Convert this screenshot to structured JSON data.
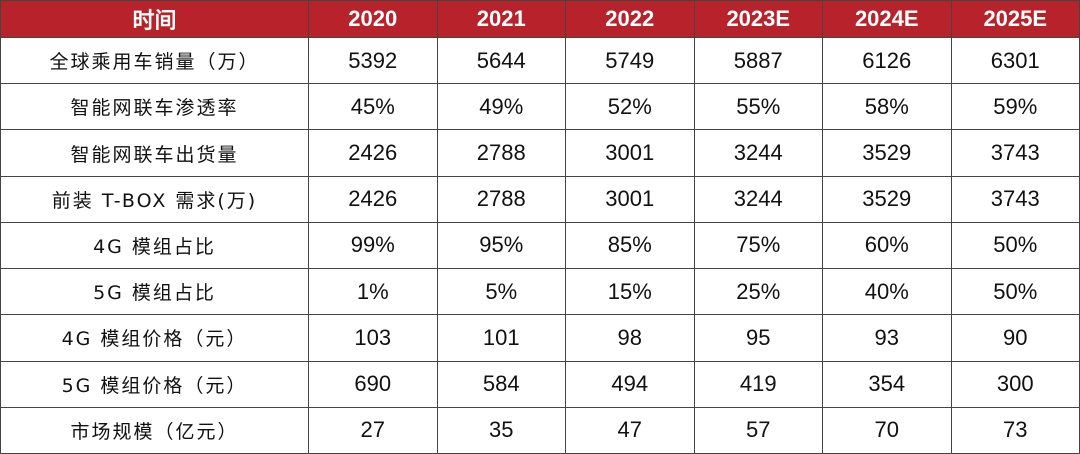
{
  "table": {
    "header": [
      "时间",
      "2020",
      "2021",
      "2022",
      "2023E",
      "2024E",
      "2025E"
    ],
    "rows": [
      [
        "全球乘用车销量（万）",
        5392,
        5644,
        5749,
        5887,
        6126,
        6301
      ],
      [
        "智能网联车渗透率",
        "45%",
        "49%",
        "52%",
        "55%",
        "58%",
        "59%"
      ],
      [
        "智能网联车出货量",
        2426,
        2788,
        3001,
        3244,
        3529,
        3743
      ],
      [
        "前装 T-BOX 需求(万)",
        2426,
        2788,
        3001,
        3244,
        3529,
        3743
      ],
      [
        "4G 模组占比",
        "99%",
        "95%",
        "85%",
        "75%",
        "60%",
        "50%"
      ],
      [
        "5G 模组占比",
        "1%",
        "5%",
        "15%",
        "25%",
        "40%",
        "50%"
      ],
      [
        "4G 模组价格（元）",
        103,
        101,
        98,
        95,
        93,
        90
      ],
      [
        "5G 模组价格（元）",
        690,
        584,
        494,
        419,
        354,
        300
      ],
      [
        "市场规模（亿元）",
        27,
        35,
        47,
        57,
        70,
        73
      ]
    ]
  }
}
